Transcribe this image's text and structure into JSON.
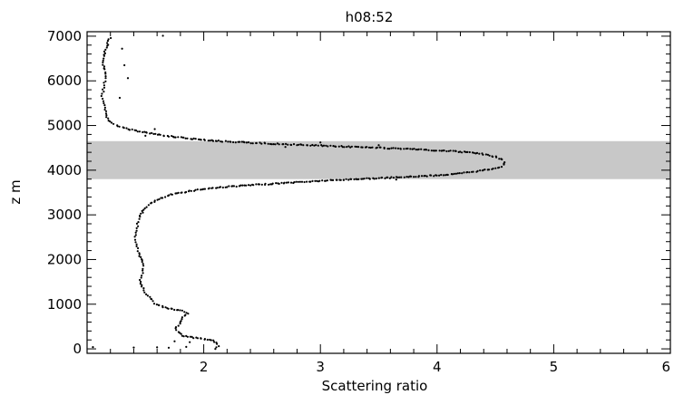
{
  "chart_data": {
    "type": "scatter",
    "title": "h08:52",
    "xlabel": "Scattering ratio",
    "ylabel": "z m",
    "xlim": [
      1.0,
      6.0
    ],
    "ylim": [
      -100,
      7100
    ],
    "xticks": [
      2,
      3,
      4,
      5,
      6
    ],
    "yticks": [
      0,
      1000,
      2000,
      3000,
      4000,
      5000,
      6000,
      7000
    ],
    "shaded_band": {
      "y_from": 3800,
      "y_to": 4650,
      "color": "#c8c8c8"
    },
    "marker_color": "#000000",
    "profile": [
      [
        2.1,
        0
      ],
      [
        2.13,
        60
      ],
      [
        2.12,
        120
      ],
      [
        2.08,
        180
      ],
      [
        2.0,
        220
      ],
      [
        1.9,
        260
      ],
      [
        1.82,
        300
      ],
      [
        1.78,
        380
      ],
      [
        1.76,
        450
      ],
      [
        1.78,
        520
      ],
      [
        1.8,
        600
      ],
      [
        1.82,
        700
      ],
      [
        1.86,
        800
      ],
      [
        1.8,
        860
      ],
      [
        1.72,
        900
      ],
      [
        1.64,
        950
      ],
      [
        1.58,
        1020
      ],
      [
        1.56,
        1100
      ],
      [
        1.52,
        1180
      ],
      [
        1.5,
        1260
      ],
      [
        1.48,
        1350
      ],
      [
        1.46,
        1450
      ],
      [
        1.46,
        1550
      ],
      [
        1.47,
        1650
      ],
      [
        1.48,
        1750
      ],
      [
        1.49,
        1850
      ],
      [
        1.48,
        1950
      ],
      [
        1.46,
        2050
      ],
      [
        1.44,
        2150
      ],
      [
        1.43,
        2250
      ],
      [
        1.42,
        2350
      ],
      [
        1.41,
        2450
      ],
      [
        1.41,
        2550
      ],
      [
        1.42,
        2650
      ],
      [
        1.43,
        2750
      ],
      [
        1.44,
        2850
      ],
      [
        1.45,
        2950
      ],
      [
        1.47,
        3050
      ],
      [
        1.5,
        3150
      ],
      [
        1.54,
        3250
      ],
      [
        1.62,
        3350
      ],
      [
        1.72,
        3450
      ],
      [
        1.85,
        3520
      ],
      [
        2.0,
        3580
      ],
      [
        2.2,
        3630
      ],
      [
        2.5,
        3680
      ],
      [
        2.8,
        3730
      ],
      [
        3.0,
        3760
      ],
      [
        3.3,
        3800
      ],
      [
        3.6,
        3830
      ],
      [
        3.9,
        3870
      ],
      [
        4.15,
        3910
      ],
      [
        4.3,
        3960
      ],
      [
        4.45,
        4020
      ],
      [
        4.55,
        4080
      ],
      [
        4.58,
        4150
      ],
      [
        4.56,
        4230
      ],
      [
        4.5,
        4300
      ],
      [
        4.35,
        4380
      ],
      [
        4.1,
        4430
      ],
      [
        3.8,
        4470
      ],
      [
        3.4,
        4510
      ],
      [
        3.0,
        4550
      ],
      [
        2.6,
        4590
      ],
      [
        2.2,
        4640
      ],
      [
        1.9,
        4700
      ],
      [
        1.7,
        4760
      ],
      [
        1.55,
        4820
      ],
      [
        1.42,
        4880
      ],
      [
        1.32,
        4940
      ],
      [
        1.25,
        5000
      ],
      [
        1.2,
        5080
      ],
      [
        1.17,
        5200
      ],
      [
        1.15,
        5350
      ],
      [
        1.14,
        5500
      ],
      [
        1.13,
        5650
      ],
      [
        1.14,
        5800
      ],
      [
        1.15,
        5950
      ],
      [
        1.16,
        6100
      ],
      [
        1.15,
        6250
      ],
      [
        1.13,
        6400
      ],
      [
        1.14,
        6550
      ],
      [
        1.16,
        6700
      ],
      [
        1.18,
        6850
      ],
      [
        1.2,
        7000
      ]
    ],
    "isolated_points": [
      [
        1.05,
        40
      ],
      [
        1.4,
        30
      ],
      [
        1.6,
        35
      ],
      [
        1.7,
        25
      ],
      [
        1.85,
        45
      ],
      [
        1.75,
        170
      ],
      [
        1.88,
        150
      ],
      [
        3.2,
        3780
      ],
      [
        3.65,
        3790
      ],
      [
        3.5,
        4560
      ],
      [
        3.0,
        4620
      ],
      [
        2.7,
        4520
      ],
      [
        1.5,
        4770
      ],
      [
        1.58,
        4920
      ],
      [
        1.3,
        6720
      ],
      [
        1.32,
        6350
      ],
      [
        1.35,
        6060
      ],
      [
        1.28,
        5620
      ],
      [
        1.65,
        7010
      ]
    ]
  }
}
